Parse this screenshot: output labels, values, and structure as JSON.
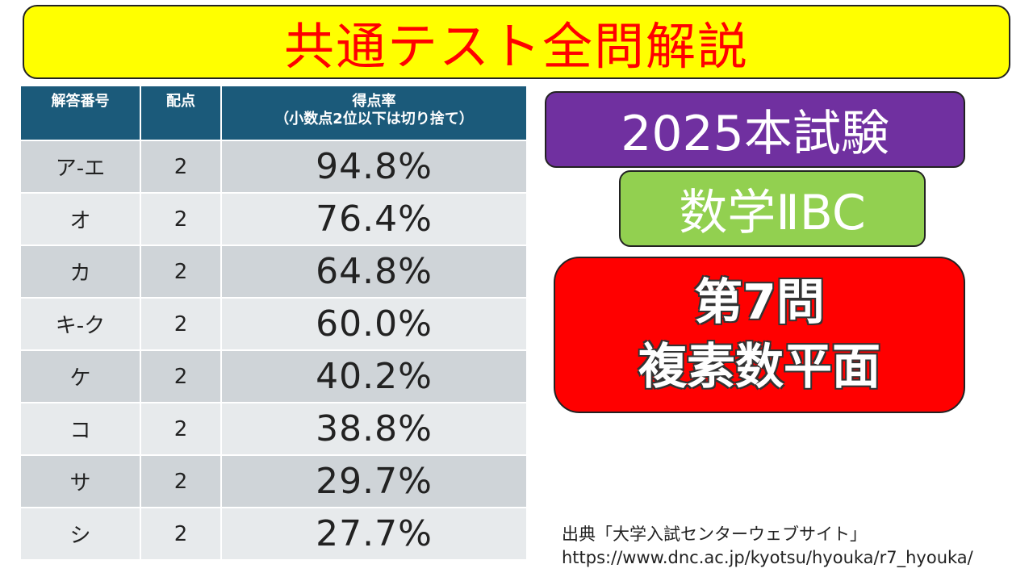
{
  "title": "共通テスト全問解説",
  "table": {
    "headers": {
      "answer_no": "解答番号",
      "points": "配点",
      "rate_line1": "得点率",
      "rate_line2": "（小数点2位以下は切り捨て）"
    },
    "rows": [
      {
        "answer": "ア-エ",
        "points": "2",
        "rate": "94.8%"
      },
      {
        "answer": "オ",
        "points": "2",
        "rate": "76.4%"
      },
      {
        "answer": "カ",
        "points": "2",
        "rate": "64.8%"
      },
      {
        "answer": "キ-ク",
        "points": "2",
        "rate": "60.0%"
      },
      {
        "answer": "ケ",
        "points": "2",
        "rate": "40.2%"
      },
      {
        "answer": "コ",
        "points": "2",
        "rate": "38.8%"
      },
      {
        "answer": "サ",
        "points": "2",
        "rate": "29.7%"
      },
      {
        "answer": "シ",
        "points": "2",
        "rate": "27.7%"
      }
    ]
  },
  "exam": "2025本試験",
  "subject": "数学ⅡBC",
  "problem": {
    "number": "第7問",
    "topic": "複素数平面"
  },
  "source": {
    "label": "出典「大学入試センターウェブサイト」",
    "url": "https://www.dnc.ac.jp/kyotsu/hyouka/r7_hyouka/"
  },
  "colors": {
    "banner_bg": "#ffff00",
    "banner_text": "#ff0000",
    "header_bg": "#1b5a7a",
    "year_box": "#7030a0",
    "subject_box": "#92d050",
    "problem_box": "#ff0000"
  }
}
